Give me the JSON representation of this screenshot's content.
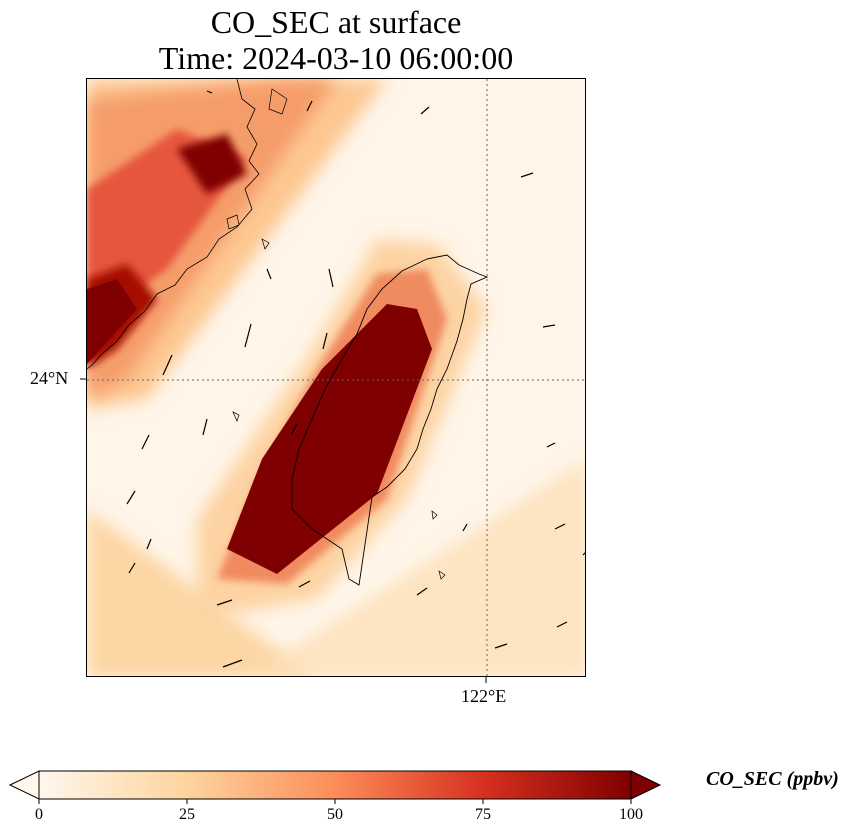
{
  "title": {
    "line1": "CO_SEC at surface",
    "line2": "Time: 2024-03-10 06:00:00"
  },
  "map": {
    "lat_label": "24°N",
    "lon_label": "122°E",
    "gridline_style": "dotted",
    "colormap": "OrRd"
  },
  "colorbar": {
    "label": "CO_SEC (ppbv)",
    "ticks": [
      "0",
      "25",
      "50",
      "75",
      "100"
    ],
    "range": [
      0,
      100
    ],
    "extend": "both",
    "colors": [
      "#fff7ec",
      "#fdd49e",
      "#fc8d59",
      "#d7301f",
      "#7f0000"
    ]
  }
}
